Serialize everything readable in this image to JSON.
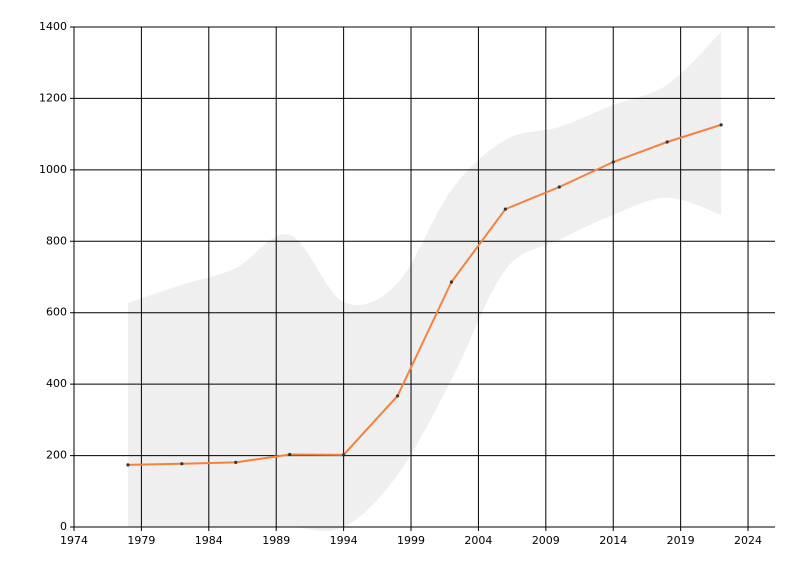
{
  "chart_data": {
    "type": "line",
    "x": [
      1978,
      1982,
      1986,
      1990,
      1994,
      1998,
      2002,
      2006,
      2010,
      2014,
      2018,
      2022
    ],
    "series": [
      {
        "color": "#f5823c",
        "values": [
          174,
          177,
          181,
          203,
          202,
          367,
          686,
          890,
          952,
          1022,
          1078,
          1126
        ],
        "lower": [
          0,
          0,
          0,
          0,
          0,
          146,
          412,
          720,
          804,
          874,
          922,
          874
        ],
        "upper": [
          627,
          678,
          725,
          818,
          630,
          683,
          944,
          1084,
          1120,
          1182,
          1238,
          1386
        ],
        "band_color": "#efefef"
      }
    ],
    "xlim": [
      1974,
      2026
    ],
    "xticks": [
      1974,
      1979,
      1984,
      1989,
      1994,
      1999,
      2004,
      2009,
      2014,
      2019,
      2024
    ],
    "ylim": [
      0,
      1400
    ],
    "yticks": [
      0,
      200,
      400,
      600,
      800,
      1000,
      1200,
      1400
    ],
    "grid": true
  }
}
